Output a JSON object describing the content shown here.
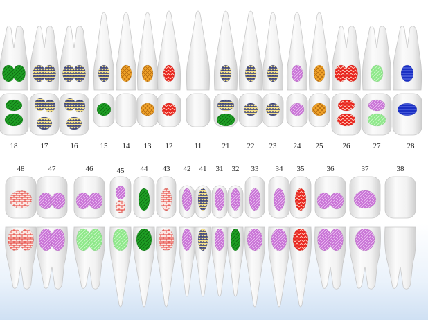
{
  "chart_data": {
    "type": "dental-chart",
    "upper_numbers": [
      "18",
      "17",
      "16",
      "15",
      "14",
      "13",
      "12",
      "11",
      "21",
      "22",
      "23",
      "24",
      "25",
      "26",
      "27",
      "28"
    ],
    "lower_numbers": [
      "48",
      "47",
      "46",
      "45",
      "44",
      "43",
      "42",
      "41",
      "31",
      "32",
      "33",
      "34",
      "35",
      "36",
      "37",
      "38"
    ],
    "upper_teeth": [
      {
        "num": "18",
        "kind": "molar",
        "marks": {
          "root": [
            "green",
            "green"
          ],
          "crown": [
            "green",
            "green"
          ]
        }
      },
      {
        "num": "17",
        "kind": "molar",
        "marks": {
          "root": [
            "weave",
            "weave"
          ],
          "crown": [
            "weave",
            "weave",
            "weave"
          ]
        }
      },
      {
        "num": "16",
        "kind": "molar",
        "marks": {
          "root": [
            "weave",
            "weave"
          ],
          "crown": [
            "weave",
            "weave",
            "weave"
          ]
        }
      },
      {
        "num": "15",
        "kind": "premolar",
        "marks": {
          "root": [
            "weave"
          ],
          "crown": [
            "green"
          ]
        }
      },
      {
        "num": "14",
        "kind": "premolar",
        "marks": {
          "root": [
            "orange"
          ],
          "crown": []
        }
      },
      {
        "num": "13",
        "kind": "canine",
        "marks": {
          "root": [
            "orange"
          ],
          "crown": [
            "orange"
          ]
        }
      },
      {
        "num": "12",
        "kind": "incisor",
        "marks": {
          "root": [
            "red"
          ],
          "crown": [
            "red"
          ]
        }
      },
      {
        "num": "11",
        "kind": "incisor",
        "marks": {
          "root": [],
          "crown": []
        }
      },
      {
        "num": "21",
        "kind": "incisor",
        "marks": {
          "root": [
            "weave"
          ],
          "crown": [
            "weave",
            "green"
          ]
        }
      },
      {
        "num": "22",
        "kind": "incisor",
        "marks": {
          "root": [
            "weave"
          ],
          "crown": [
            "weave"
          ]
        }
      },
      {
        "num": "23",
        "kind": "canine",
        "marks": {
          "root": [
            "weave"
          ],
          "crown": [
            "weave"
          ]
        }
      },
      {
        "num": "24",
        "kind": "premolar",
        "marks": {
          "root": [
            "violet"
          ],
          "crown": [
            "violet"
          ]
        }
      },
      {
        "num": "25",
        "kind": "premolar",
        "marks": {
          "root": [
            "orange"
          ],
          "crown": [
            "orange"
          ]
        }
      },
      {
        "num": "26",
        "kind": "molar",
        "marks": {
          "root": [
            "red",
            "red"
          ],
          "crown": [
            "red",
            "red"
          ]
        }
      },
      {
        "num": "27",
        "kind": "molar",
        "marks": {
          "root": [
            "lightgreen"
          ],
          "crown": [
            "violet",
            "lightgreen"
          ]
        }
      },
      {
        "num": "28",
        "kind": "molar",
        "marks": {
          "root": [
            "navy"
          ],
          "crown": [
            "navy"
          ]
        }
      }
    ],
    "lower_teeth": [
      {
        "num": "48",
        "kind": "molar",
        "marks": {
          "crown": [
            "brick"
          ],
          "side": [
            "brick",
            "brick"
          ]
        }
      },
      {
        "num": "47",
        "kind": "molar",
        "marks": {
          "crown": [
            "violet",
            "violet"
          ],
          "side": [
            "violet",
            "violet"
          ]
        }
      },
      {
        "num": "46",
        "kind": "molar",
        "marks": {
          "crown": [
            "violet",
            "violet"
          ],
          "side": [
            "lightgreen",
            "lightgreen"
          ]
        }
      },
      {
        "num": "45",
        "kind": "premolar",
        "marks": {
          "crown": [
            "violet",
            "brick"
          ],
          "side": [
            "lightgreen"
          ]
        }
      },
      {
        "num": "44",
        "kind": "premolar",
        "marks": {
          "crown": [
            "green"
          ],
          "side": [
            "green"
          ]
        }
      },
      {
        "num": "43",
        "kind": "canine",
        "marks": {
          "crown": [
            "brick"
          ],
          "side": [
            "brick"
          ]
        }
      },
      {
        "num": "42",
        "kind": "incisor",
        "marks": {
          "crown": [
            "violet"
          ],
          "side": [
            "violet"
          ]
        }
      },
      {
        "num": "41",
        "kind": "incisor",
        "marks": {
          "crown": [
            "weave"
          ],
          "side": [
            "weave"
          ]
        }
      },
      {
        "num": "31",
        "kind": "incisor",
        "marks": {
          "crown": [
            "violet"
          ],
          "side": [
            "violet"
          ]
        }
      },
      {
        "num": "32",
        "kind": "incisor",
        "marks": {
          "crown": [
            "violet"
          ],
          "side": [
            "green"
          ]
        }
      },
      {
        "num": "33",
        "kind": "canine",
        "marks": {
          "crown": [
            "violet"
          ],
          "side": [
            "violet"
          ]
        }
      },
      {
        "num": "34",
        "kind": "premolar",
        "marks": {
          "crown": [
            "violet"
          ],
          "side": [
            "violet"
          ]
        }
      },
      {
        "num": "35",
        "kind": "premolar",
        "marks": {
          "crown": [
            "red"
          ],
          "side": [
            "red"
          ]
        }
      },
      {
        "num": "36",
        "kind": "molar",
        "marks": {
          "crown": [
            "violet",
            "violet"
          ],
          "side": [
            "violet",
            "violet"
          ]
        }
      },
      {
        "num": "37",
        "kind": "molar",
        "marks": {
          "crown": [
            "violet"
          ],
          "side": [
            "violet"
          ]
        }
      },
      {
        "num": "38",
        "kind": "molar",
        "marks": {
          "crown": [],
          "side": []
        }
      }
    ],
    "colors": {
      "green": "#1e9e24",
      "lightgreen": "#8ee88a",
      "weave": "#2b3a8a",
      "orange": "#f0a020",
      "red": "#e8231c",
      "violet": "#c873d6",
      "navy": "#1a2fc4",
      "brick": "#e3322a",
      "tooth": "#f4f4f4",
      "tooth_shade": "#d6d6d6"
    }
  }
}
